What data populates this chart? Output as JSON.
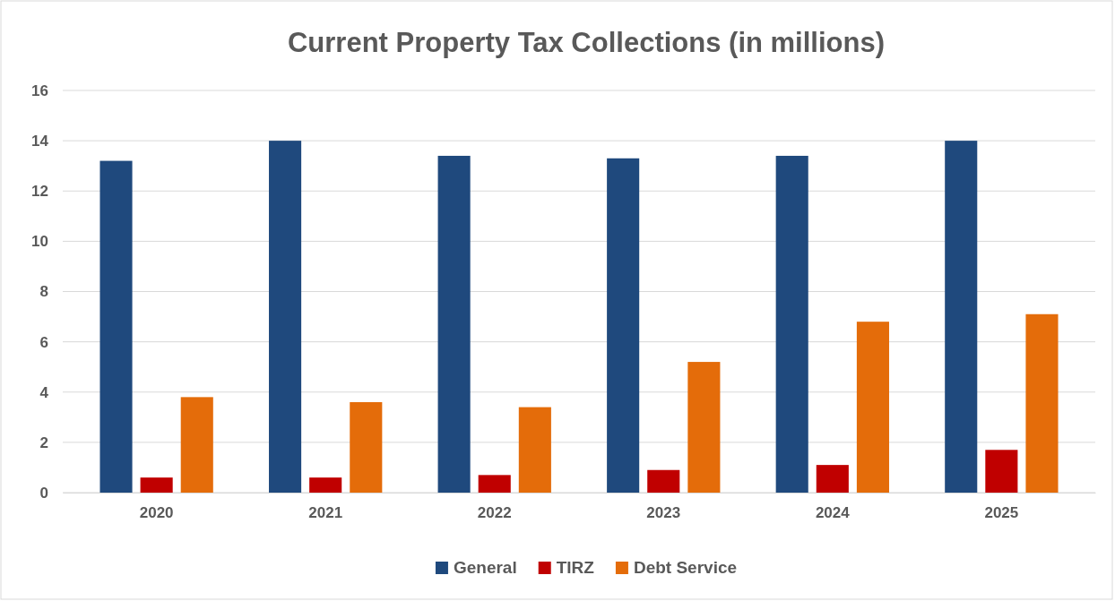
{
  "chart_data": {
    "type": "bar",
    "title": "Current Property Tax Collections (in millions)",
    "categories": [
      "2020",
      "2021",
      "2022",
      "2023",
      "2024",
      "2025"
    ],
    "series": [
      {
        "name": "General",
        "color": "#1f497d",
        "values": [
          13.2,
          14.0,
          13.4,
          13.3,
          13.4,
          14.0
        ]
      },
      {
        "name": "TIRZ",
        "color": "#c00000",
        "values": [
          0.6,
          0.6,
          0.7,
          0.9,
          1.1,
          1.7
        ]
      },
      {
        "name": "Debt Service",
        "color": "#e46c0a",
        "values": [
          3.8,
          3.6,
          3.4,
          5.2,
          6.8,
          7.1
        ]
      }
    ],
    "ylim": [
      0,
      16
    ],
    "yticks": [
      0,
      2,
      4,
      6,
      8,
      10,
      12,
      14,
      16
    ],
    "grid": "y",
    "legend": "bottom"
  }
}
